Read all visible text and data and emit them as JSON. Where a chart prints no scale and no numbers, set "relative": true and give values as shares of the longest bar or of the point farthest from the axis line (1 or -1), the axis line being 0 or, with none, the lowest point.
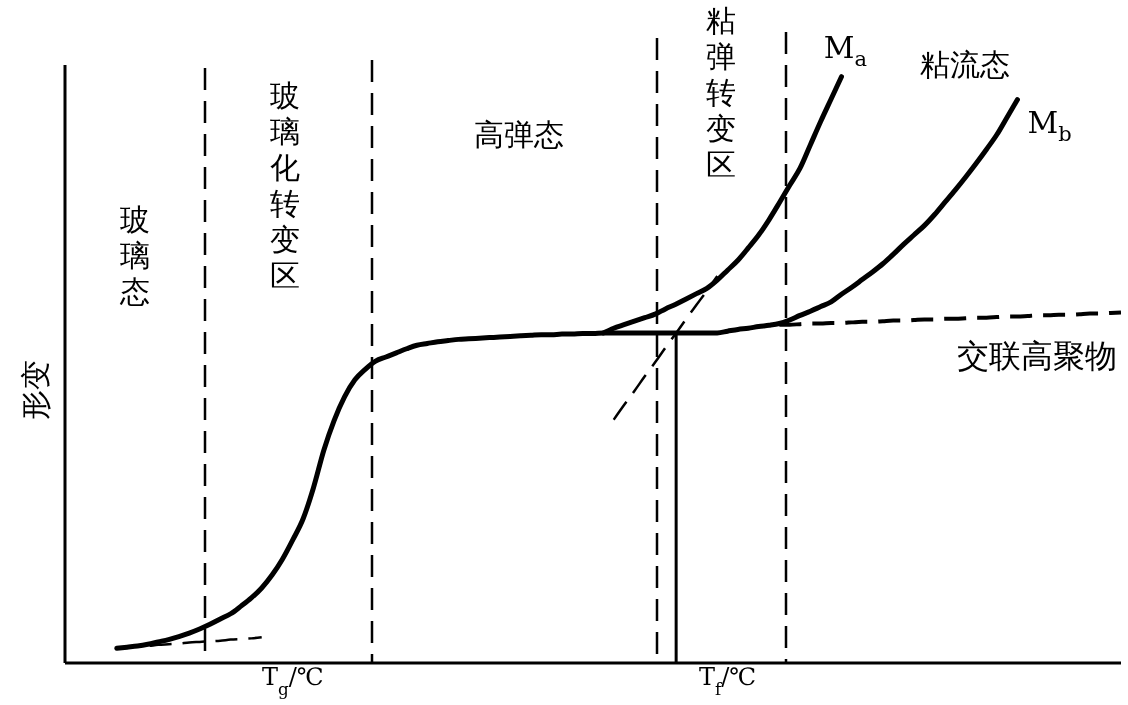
{
  "chart_data": {
    "type": "line",
    "relative": true,
    "ylabel": "形变",
    "categories": [
      null,
      null,
      null,
      null,
      null,
      null,
      null,
      null,
      null,
      null,
      null,
      null,
      null,
      null,
      null,
      null,
      null,
      null,
      null,
      null,
      null,
      null,
      "T$_{g}$/℃",
      null,
      null,
      null,
      null,
      null,
      null,
      null,
      null,
      null,
      null,
      null,
      null,
      null,
      null,
      null,
      null,
      null,
      null,
      null,
      null,
      null,
      null,
      null,
      null,
      null,
      null,
      null,
      null,
      null,
      null,
      null,
      null,
      null,
      null,
      null,
      null,
      null,
      null,
      null,
      null,
      null,
      "T$_{f}$/℃",
      null,
      null,
      null,
      null,
      null,
      null,
      null,
      null,
      null,
      null,
      null,
      null,
      null,
      null,
      null,
      null,
      null,
      null,
      null,
      null,
      null,
      null,
      null,
      null,
      null,
      null,
      null,
      null,
      null,
      null,
      null,
      null,
      null,
      null,
      null,
      null,
      null,
      null
    ],
    "annotations": [
      "玻璃态",
      "玻璃化转变区",
      "高弹态",
      "粘弹转变区",
      "粘流态"
    ],
    "series": [
      {
        "color": "#000000",
        "line_style": "dashed",
        "values": [
          null,
          null,
          null,
          null,
          null,
          0.025,
          0.027,
          0.028,
          0.029,
          0.031,
          0.032,
          0.033,
          0.035,
          0.036,
          0.037,
          0.038,
          0.04,
          0.041,
          0.042,
          0.044,
          null,
          null,
          null,
          null,
          null,
          null,
          null,
          null,
          null,
          null,
          null,
          null,
          null,
          null,
          null,
          null,
          null,
          null,
          null,
          null,
          null,
          null,
          null,
          null,
          null,
          null,
          null,
          null,
          null,
          null,
          null,
          null,
          null,
          null,
          null,
          null,
          null,
          null,
          null,
          null,
          null,
          null,
          null,
          null,
          null,
          null,
          null,
          null,
          null,
          null,
          null,
          null,
          null,
          null,
          null,
          null,
          null,
          null,
          null,
          null,
          null,
          null,
          null,
          null,
          null,
          null,
          null,
          null,
          null,
          null,
          null,
          null,
          null,
          null,
          null,
          null,
          null,
          null,
          null,
          null,
          null,
          null,
          null
        ]
      },
      {
        "color": "#000000",
        "line_style": "dashed",
        "values": [
          null,
          null,
          null,
          null,
          null,
          null,
          null,
          null,
          null,
          null,
          null,
          null,
          null,
          null,
          null,
          null,
          null,
          null,
          null,
          null,
          null,
          null,
          null,
          null,
          null,
          null,
          null,
          null,
          null,
          null,
          null,
          null,
          null,
          null,
          null,
          null,
          null,
          null,
          null,
          null,
          null,
          null,
          null,
          null,
          null,
          null,
          null,
          null,
          null,
          null,
          null,
          null,
          null,
          0.415,
          0.44,
          0.464,
          0.489,
          0.513,
          0.538,
          0.562,
          0.587,
          0.611,
          0.635,
          0.66,
          null,
          null,
          null,
          null,
          null,
          null,
          null,
          null,
          null,
          null,
          null,
          null,
          null,
          null,
          null,
          null,
          null,
          null,
          null,
          null,
          null,
          null,
          null,
          null,
          null,
          null,
          null,
          null,
          null,
          null,
          null,
          null,
          null,
          null,
          null,
          null,
          null,
          null,
          null
        ]
      },
      {
        "type": "bar",
        "color": "#000000",
        "values": [
          null,
          null,
          null,
          null,
          null,
          null,
          null,
          null,
          null,
          null,
          null,
          null,
          null,
          null,
          null,
          null,
          null,
          null,
          null,
          null,
          null,
          null,
          null,
          null,
          null,
          null,
          null,
          null,
          null,
          null,
          null,
          null,
          null,
          null,
          null,
          null,
          null,
          null,
          null,
          null,
          null,
          null,
          null,
          null,
          null,
          null,
          null,
          null,
          null,
          null,
          null,
          null,
          null,
          null,
          null,
          null,
          null,
          null,
          null,
          0.563,
          null,
          null,
          null,
          null,
          null,
          null,
          null,
          null,
          null,
          null,
          null,
          null,
          null,
          null,
          null,
          null,
          null,
          null,
          null,
          null,
          null,
          null,
          null,
          null,
          null,
          null,
          null,
          null,
          null,
          null,
          null,
          null,
          null,
          null,
          null,
          null,
          null,
          null,
          null,
          null,
          null,
          null,
          null
        ]
      },
      {
        "name": "交联高聚物",
        "color": "#000000",
        "line_style": "dashed",
        "values": [
          null,
          null,
          null,
          null,
          null,
          null,
          null,
          null,
          null,
          null,
          null,
          null,
          null,
          null,
          null,
          null,
          null,
          null,
          null,
          null,
          null,
          null,
          null,
          null,
          null,
          null,
          null,
          null,
          null,
          null,
          null,
          null,
          null,
          null,
          null,
          null,
          null,
          null,
          null,
          null,
          null,
          null,
          null,
          null,
          null,
          null,
          null,
          null,
          null,
          null,
          null,
          null,
          null,
          null,
          null,
          null,
          null,
          null,
          null,
          null,
          null,
          null,
          null,
          null,
          null,
          null,
          null,
          null,
          null,
          0.577,
          0.577,
          0.578,
          0.579,
          0.579,
          0.58,
          0.58,
          0.581,
          0.582,
          0.582,
          0.583,
          0.584,
          0.584,
          0.585,
          0.586,
          0.586,
          0.587,
          0.587,
          0.588,
          0.589,
          0.589,
          0.59,
          0.591,
          0.591,
          0.592,
          0.593,
          0.593,
          0.594,
          0.594,
          0.595,
          0.596,
          0.596,
          0.597,
          0.598
        ]
      },
      {
        "name": "M$_{a}$",
        "color": "#000000",
        "line_style": "solid",
        "values": [
          null,
          null,
          null,
          null,
          null,
          null,
          null,
          null,
          null,
          null,
          null,
          null,
          null,
          null,
          null,
          null,
          null,
          null,
          null,
          null,
          null,
          null,
          null,
          null,
          null,
          null,
          null,
          null,
          null,
          null,
          null,
          null,
          null,
          null,
          null,
          null,
          null,
          null,
          null,
          null,
          null,
          null,
          null,
          null,
          null,
          null,
          null,
          null,
          null,
          null,
          null,
          null,
          0.563,
          0.571,
          0.577,
          0.583,
          0.589,
          0.595,
          0.604,
          0.612,
          0.621,
          0.63,
          0.639,
          0.653,
          0.67,
          0.687,
          0.708,
          0.73,
          0.756,
          0.785,
          0.815,
          0.844,
          0.884,
          0.924,
          0.962,
          1.0,
          null,
          null,
          null,
          null,
          null,
          null,
          null,
          null,
          null,
          null,
          null,
          null,
          null,
          null,
          null,
          null,
          null,
          null,
          null,
          null,
          null,
          null,
          null,
          null,
          null,
          null,
          null
        ]
      },
      {
        "name": "M$_{b}$",
        "color": "#000000",
        "line_style": "solid",
        "values": [
          null,
          null,
          null,
          null,
          null,
          0.025,
          0.027,
          0.029,
          0.032,
          0.036,
          0.04,
          0.045,
          0.051,
          0.058,
          0.066,
          0.075,
          0.084,
          0.097,
          0.111,
          0.128,
          0.15,
          0.177,
          0.21,
          0.246,
          0.299,
          0.363,
          0.414,
          0.454,
          0.483,
          0.501,
          0.515,
          0.522,
          0.529,
          0.536,
          0.542,
          0.545,
          0.548,
          0.55,
          0.552,
          0.553,
          0.554,
          0.555,
          0.556,
          0.557,
          0.558,
          0.559,
          0.56,
          0.56,
          0.561,
          0.561,
          0.562,
          0.562,
          0.563,
          0.563,
          0.563,
          0.563,
          0.563,
          0.563,
          0.563,
          0.563,
          0.563,
          0.563,
          0.563,
          0.563,
          0.566,
          0.569,
          0.571,
          0.574,
          0.576,
          0.579,
          0.585,
          0.593,
          0.6,
          0.608,
          0.616,
          0.629,
          0.641,
          0.654,
          0.667,
          0.681,
          0.697,
          0.714,
          0.73,
          0.746,
          0.765,
          0.786,
          0.807,
          0.829,
          0.852,
          0.876,
          0.901,
          0.931,
          0.961,
          null,
          null,
          null,
          null,
          null,
          null,
          null,
          null,
          null,
          null
        ]
      }
    ]
  }
}
